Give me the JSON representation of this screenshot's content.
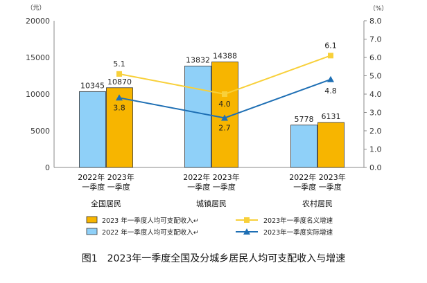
{
  "chart_data": {
    "type": "bar",
    "title": "图1　2023年一季度全国及分城乡居民人均可支配收入与增速",
    "left_unit": "（元）",
    "right_unit": "（%）",
    "y_left": {
      "min": 0,
      "max": 20000,
      "ticks": [
        "0",
        "5000",
        "10000",
        "15000",
        "20000"
      ]
    },
    "y_right": {
      "min": 0,
      "max": 8,
      "ticks": [
        "0.0",
        "1.0",
        "2.0",
        "3.0",
        "4.0",
        "5.0",
        "6.0",
        "7.0",
        "8.0"
      ]
    },
    "categories": [
      {
        "line1": "2022年 2023年",
        "line2": "一季度 一季度",
        "line3": "全国居民"
      },
      {
        "line1": "2022年 2023年",
        "line2": "一季度 一季度",
        "line3": "城镇居民"
      },
      {
        "line1": "2022年 2023年",
        "line2": "一季度 一季度",
        "line3": "农村居民"
      }
    ],
    "bar_series": [
      {
        "name": "2022 年一季度人均可支配收入↵",
        "color": "#8fd0f8",
        "values": [
          10345,
          13832,
          5778
        ],
        "labels": [
          "10345",
          "13832",
          "5778"
        ]
      },
      {
        "name": "2023 年一季度人均可支配收入↵",
        "color": "#f7b500",
        "values": [
          10870,
          14388,
          6131
        ],
        "labels": [
          "10870",
          "14388",
          "6131"
        ]
      }
    ],
    "line_series": [
      {
        "name": "2023年一季度名义增速",
        "color": "#f8d03a",
        "marker": "square",
        "values": [
          5.1,
          4.0,
          6.1
        ],
        "labels": [
          "5.1",
          "4.0",
          "6.1"
        ]
      },
      {
        "name": "2023年一季度实际增速",
        "color": "#1e6fb4",
        "marker": "triangle",
        "values": [
          3.8,
          2.7,
          4.8
        ],
        "labels": [
          "3.8",
          "2.7",
          "4.8"
        ]
      }
    ]
  }
}
